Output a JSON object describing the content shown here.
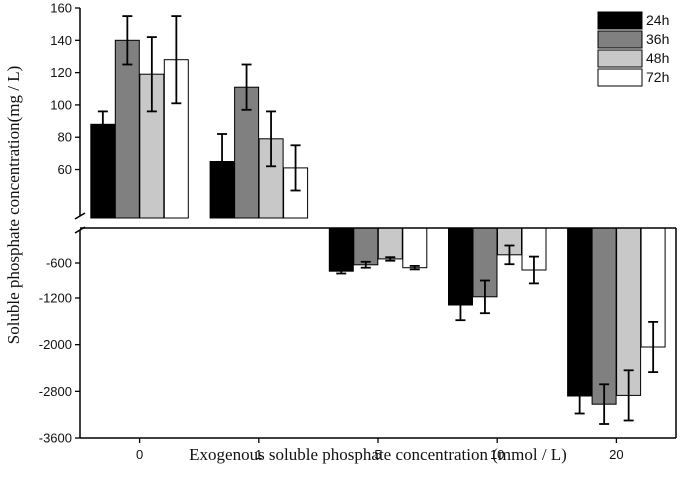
{
  "chart_data": {
    "type": "bar",
    "title": "",
    "xlabel": "Exogenous soluble phosphate concentration (mmol / L)",
    "ylabel": "Soluble phosphate concentration(mg / L)",
    "categories": [
      "0",
      "1",
      "5",
      "10",
      "20"
    ],
    "series": [
      {
        "name": "24h",
        "color": "#000000",
        "values": [
          88,
          65,
          -740,
          -1320,
          -2880
        ],
        "errors": [
          8,
          17,
          40,
          260,
          300
        ]
      },
      {
        "name": "36h",
        "color": "#808080",
        "values": [
          140,
          111,
          -630,
          -1180,
          -3020
        ],
        "errors": [
          15,
          14,
          50,
          280,
          340
        ]
      },
      {
        "name": "48h",
        "color": "#c8c8c8",
        "values": [
          119,
          79,
          -530,
          -460,
          -2870
        ],
        "errors": [
          23,
          17,
          30,
          160,
          430
        ]
      },
      {
        "name": "72h",
        "color": "#ffffff",
        "values": [
          128,
          61,
          -680,
          -720,
          -2040
        ],
        "errors": [
          27,
          14,
          30,
          230,
          430
        ]
      }
    ],
    "axis_break": true,
    "upper_ylim": [
      30,
      160
    ],
    "upper_yticks": [
      60,
      80,
      100,
      120,
      140,
      160
    ],
    "lower_ylim": [
      -3600,
      0
    ],
    "lower_yticks": [
      -600,
      -1200,
      -2000,
      -2800,
      -3600
    ],
    "legend_position": "top-right"
  }
}
